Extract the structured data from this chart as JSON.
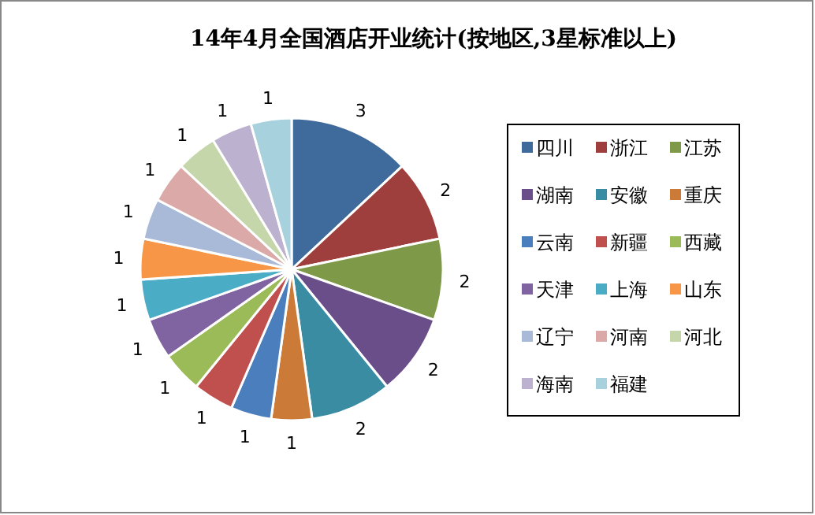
{
  "chart_data": {
    "type": "pie",
    "title": "14年4月全国酒店开业统计(按地区,3星标准以上)",
    "categories": [
      "四川",
      "浙江",
      "江苏",
      "湖南",
      "安徽",
      "重庆",
      "云南",
      "新疆",
      "西藏",
      "天津",
      "上海",
      "山东",
      "辽宁",
      "河南",
      "河北",
      "海南",
      "福建"
    ],
    "values": [
      3,
      2,
      2,
      2,
      2,
      1,
      1,
      1,
      1,
      1,
      1,
      1,
      1,
      1,
      1,
      1,
      1
    ],
    "colors": [
      "#3f6a9c",
      "#9e3f3d",
      "#7e9a48",
      "#6a4e8a",
      "#3a8ca3",
      "#cc7a38",
      "#4a7ebd",
      "#c0504d",
      "#9bbb59",
      "#8064a2",
      "#4bacc6",
      "#f79646",
      "#a9b9d8",
      "#dba9a8",
      "#c6d6ab",
      "#bcb2cf",
      "#a8d1de"
    ],
    "data_labels": true,
    "legend": "right"
  }
}
